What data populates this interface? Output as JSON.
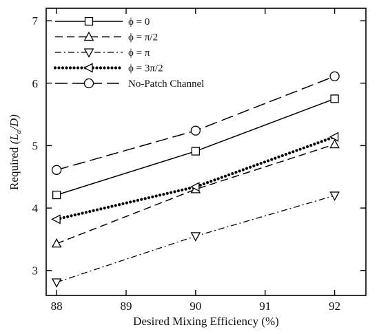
{
  "chart_data": {
    "type": "line",
    "x": [
      88,
      90,
      92
    ],
    "xlabel": "Desired Mixing Efficiency  (%)",
    "ylabel_prefix": "Required ",
    "ylabel_math": "(L",
    "ylabel_sub": "a",
    "ylabel_suffix": "/D)",
    "xlim": [
      87.85,
      92.45
    ],
    "ylim": [
      2.6,
      7.2
    ],
    "xticks": [
      88,
      89,
      90,
      91,
      92
    ],
    "yticks": [
      3,
      4,
      5,
      6,
      7
    ],
    "grid": false,
    "legend_position": "top-left",
    "series": [
      {
        "name": "ϕ = 0",
        "values": [
          4.21,
          4.91,
          5.75
        ],
        "line_style": "solid",
        "marker": "square"
      },
      {
        "name": "ϕ = π/2",
        "values": [
          3.43,
          4.3,
          5.02
        ],
        "line_style": "dashed",
        "marker": "triangle-up"
      },
      {
        "name": "ϕ = π",
        "values": [
          2.81,
          3.55,
          4.2
        ],
        "line_style": "dashdot",
        "marker": "triangle-down"
      },
      {
        "name": "ϕ = 3π/2",
        "values": [
          3.82,
          4.34,
          5.14
        ],
        "line_style": "dotted",
        "marker": "triangle-left"
      },
      {
        "name": "No-Patch Channel",
        "values": [
          4.61,
          5.24,
          6.11
        ],
        "line_style": "longdash",
        "marker": "circle"
      }
    ]
  }
}
